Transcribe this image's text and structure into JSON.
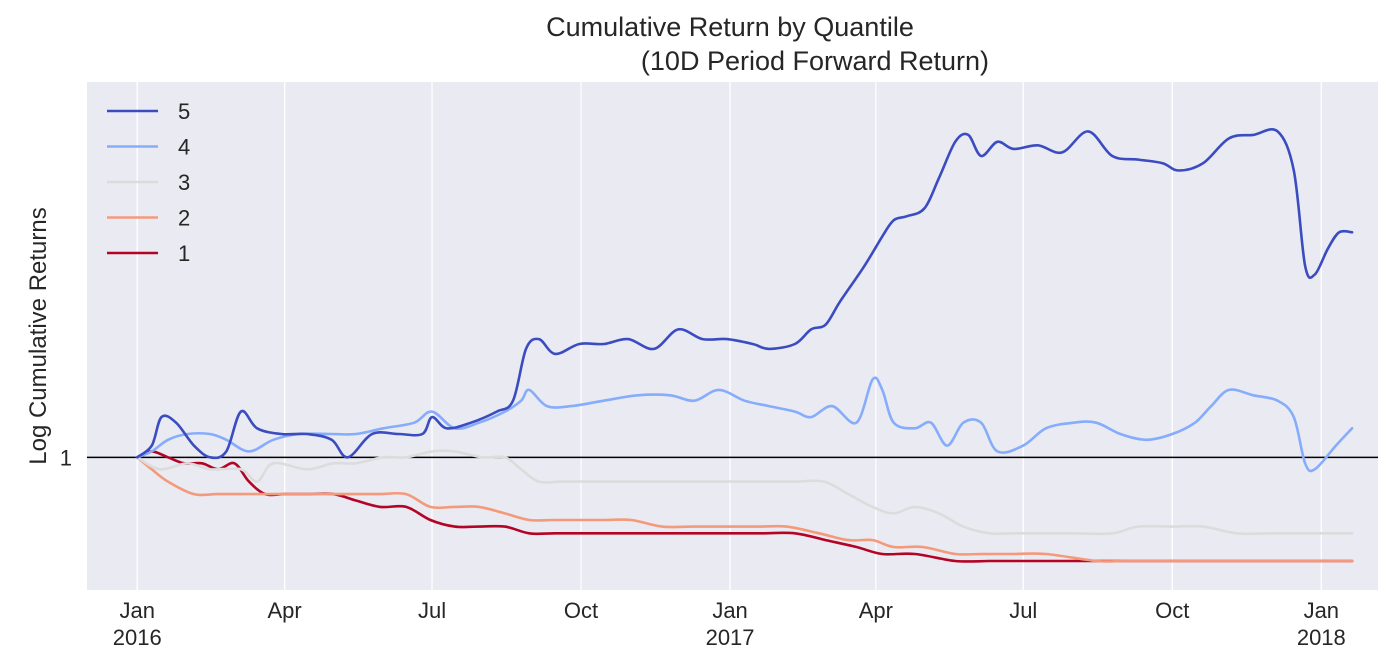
{
  "chart_data": {
    "type": "line",
    "title": "Cumulative Return by Quantile",
    "subtitle": "(10D Period Forward Return)",
    "xlabel": "",
    "ylabel": "Log Cumulative Returns",
    "y_scale": "log",
    "baseline": 1,
    "grid": true,
    "legend_position": "top-left",
    "x_ticks": [
      {
        "date": "2016-01-01",
        "label": "Jan",
        "sublabel": "2016"
      },
      {
        "date": "2016-04-01",
        "label": "Apr",
        "sublabel": ""
      },
      {
        "date": "2016-07-01",
        "label": "Jul",
        "sublabel": ""
      },
      {
        "date": "2016-10-01",
        "label": "Oct",
        "sublabel": ""
      },
      {
        "date": "2017-01-01",
        "label": "Jan",
        "sublabel": "2017"
      },
      {
        "date": "2017-04-01",
        "label": "Apr",
        "sublabel": ""
      },
      {
        "date": "2017-07-01",
        "label": "Jul",
        "sublabel": ""
      },
      {
        "date": "2017-10-01",
        "label": "Oct",
        "sublabel": ""
      },
      {
        "date": "2018-01-01",
        "label": "Jan",
        "sublabel": "2018"
      }
    ],
    "y_ticks": [
      {
        "value": 1,
        "label": "1"
      }
    ],
    "xlim": [
      "2015-12-01",
      "2018-02-05"
    ],
    "ylim": [
      0.8,
      1.88
    ],
    "series": [
      {
        "name": "5",
        "color": "#3b4cc0",
        "points": [
          [
            "2016-01-01",
            1.0
          ],
          [
            "2016-01-10",
            1.02
          ],
          [
            "2016-01-16",
            1.07
          ],
          [
            "2016-01-25",
            1.06
          ],
          [
            "2016-02-05",
            1.02
          ],
          [
            "2016-02-15",
            1.0
          ],
          [
            "2016-02-25",
            1.01
          ],
          [
            "2016-03-05",
            1.08
          ],
          [
            "2016-03-15",
            1.05
          ],
          [
            "2016-03-30",
            1.04
          ],
          [
            "2016-04-15",
            1.04
          ],
          [
            "2016-04-30",
            1.03
          ],
          [
            "2016-05-10",
            1.0
          ],
          [
            "2016-05-25",
            1.04
          ],
          [
            "2016-06-10",
            1.04
          ],
          [
            "2016-06-25",
            1.04
          ],
          [
            "2016-07-01",
            1.07
          ],
          [
            "2016-07-10",
            1.05
          ],
          [
            "2016-07-25",
            1.06
          ],
          [
            "2016-08-10",
            1.08
          ],
          [
            "2016-08-20",
            1.1
          ],
          [
            "2016-08-28",
            1.2
          ],
          [
            "2016-09-05",
            1.22
          ],
          [
            "2016-09-15",
            1.19
          ],
          [
            "2016-09-30",
            1.21
          ],
          [
            "2016-10-15",
            1.21
          ],
          [
            "2016-10-30",
            1.22
          ],
          [
            "2016-11-15",
            1.2
          ],
          [
            "2016-11-30",
            1.24
          ],
          [
            "2016-12-15",
            1.22
          ],
          [
            "2016-12-30",
            1.22
          ],
          [
            "2017-01-15",
            1.21
          ],
          [
            "2017-01-25",
            1.2
          ],
          [
            "2017-02-10",
            1.21
          ],
          [
            "2017-02-20",
            1.24
          ],
          [
            "2017-03-01",
            1.25
          ],
          [
            "2017-03-10",
            1.3
          ],
          [
            "2017-03-25",
            1.38
          ],
          [
            "2017-04-05",
            1.45
          ],
          [
            "2017-04-12",
            1.49
          ],
          [
            "2017-04-20",
            1.5
          ],
          [
            "2017-05-01",
            1.52
          ],
          [
            "2017-05-10",
            1.6
          ],
          [
            "2017-05-20",
            1.7
          ],
          [
            "2017-05-28",
            1.72
          ],
          [
            "2017-06-05",
            1.66
          ],
          [
            "2017-06-15",
            1.7
          ],
          [
            "2017-06-25",
            1.68
          ],
          [
            "2017-07-10",
            1.69
          ],
          [
            "2017-07-25",
            1.67
          ],
          [
            "2017-08-10",
            1.73
          ],
          [
            "2017-08-25",
            1.66
          ],
          [
            "2017-09-10",
            1.65
          ],
          [
            "2017-09-25",
            1.64
          ],
          [
            "2017-10-05",
            1.62
          ],
          [
            "2017-10-20",
            1.64
          ],
          [
            "2017-11-05",
            1.71
          ],
          [
            "2017-11-20",
            1.72
          ],
          [
            "2017-12-05",
            1.73
          ],
          [
            "2017-12-15",
            1.62
          ],
          [
            "2017-12-22",
            1.38
          ],
          [
            "2017-12-28",
            1.36
          ],
          [
            "2018-01-05",
            1.42
          ],
          [
            "2018-01-12",
            1.46
          ],
          [
            "2018-01-20",
            1.46
          ]
        ]
      },
      {
        "name": "4",
        "color": "#86acfc",
        "points": [
          [
            "2016-01-01",
            1.0
          ],
          [
            "2016-01-10",
            1.01
          ],
          [
            "2016-01-20",
            1.03
          ],
          [
            "2016-02-01",
            1.04
          ],
          [
            "2016-02-15",
            1.04
          ],
          [
            "2016-02-25",
            1.03
          ],
          [
            "2016-03-10",
            1.01
          ],
          [
            "2016-03-25",
            1.03
          ],
          [
            "2016-04-10",
            1.04
          ],
          [
            "2016-04-30",
            1.04
          ],
          [
            "2016-05-15",
            1.04
          ],
          [
            "2016-06-01",
            1.05
          ],
          [
            "2016-06-20",
            1.06
          ],
          [
            "2016-07-01",
            1.08
          ],
          [
            "2016-07-15",
            1.05
          ],
          [
            "2016-07-30",
            1.06
          ],
          [
            "2016-08-15",
            1.08
          ],
          [
            "2016-08-25",
            1.1
          ],
          [
            "2016-08-30",
            1.12
          ],
          [
            "2016-09-10",
            1.09
          ],
          [
            "2016-09-25",
            1.09
          ],
          [
            "2016-10-15",
            1.1
          ],
          [
            "2016-11-05",
            1.11
          ],
          [
            "2016-11-25",
            1.11
          ],
          [
            "2016-12-10",
            1.1
          ],
          [
            "2016-12-25",
            1.12
          ],
          [
            "2017-01-10",
            1.1
          ],
          [
            "2017-01-25",
            1.09
          ],
          [
            "2017-02-10",
            1.08
          ],
          [
            "2017-02-20",
            1.07
          ],
          [
            "2017-03-05",
            1.09
          ],
          [
            "2017-03-20",
            1.06
          ],
          [
            "2017-03-30",
            1.14
          ],
          [
            "2017-04-05",
            1.12
          ],
          [
            "2017-04-12",
            1.06
          ],
          [
            "2017-04-25",
            1.05
          ],
          [
            "2017-05-05",
            1.06
          ],
          [
            "2017-05-15",
            1.02
          ],
          [
            "2017-05-25",
            1.06
          ],
          [
            "2017-06-05",
            1.06
          ],
          [
            "2017-06-15",
            1.01
          ],
          [
            "2017-07-01",
            1.02
          ],
          [
            "2017-07-15",
            1.05
          ],
          [
            "2017-08-01",
            1.06
          ],
          [
            "2017-08-15",
            1.06
          ],
          [
            "2017-08-30",
            1.04
          ],
          [
            "2017-09-15",
            1.03
          ],
          [
            "2017-10-01",
            1.04
          ],
          [
            "2017-10-15",
            1.06
          ],
          [
            "2017-10-25",
            1.09
          ],
          [
            "2017-11-05",
            1.12
          ],
          [
            "2017-11-20",
            1.11
          ],
          [
            "2017-12-05",
            1.1
          ],
          [
            "2017-12-15",
            1.07
          ],
          [
            "2017-12-22",
            0.99
          ],
          [
            "2017-12-28",
            0.98
          ],
          [
            "2018-01-10",
            1.02
          ],
          [
            "2018-01-20",
            1.05
          ]
        ]
      },
      {
        "name": "3",
        "color": "#dddcdc",
        "points": [
          [
            "2016-01-01",
            1.0
          ],
          [
            "2016-01-15",
            0.98
          ],
          [
            "2016-02-01",
            0.99
          ],
          [
            "2016-02-15",
            0.98
          ],
          [
            "2016-03-05",
            0.98
          ],
          [
            "2016-03-15",
            0.96
          ],
          [
            "2016-03-25",
            0.99
          ],
          [
            "2016-04-15",
            0.98
          ],
          [
            "2016-05-01",
            0.99
          ],
          [
            "2016-05-15",
            0.99
          ],
          [
            "2016-06-01",
            1.0
          ],
          [
            "2016-06-15",
            1.0
          ],
          [
            "2016-07-01",
            1.01
          ],
          [
            "2016-07-15",
            1.01
          ],
          [
            "2016-08-01",
            1.0
          ],
          [
            "2016-08-15",
            1.0
          ],
          [
            "2016-08-25",
            0.98
          ],
          [
            "2016-09-05",
            0.96
          ],
          [
            "2016-09-20",
            0.96
          ],
          [
            "2016-10-15",
            0.96
          ],
          [
            "2016-11-01",
            0.96
          ],
          [
            "2016-11-20",
            0.96
          ],
          [
            "2016-12-15",
            0.96
          ],
          [
            "2017-01-10",
            0.96
          ],
          [
            "2017-01-25",
            0.96
          ],
          [
            "2017-02-10",
            0.96
          ],
          [
            "2017-02-28",
            0.96
          ],
          [
            "2017-03-15",
            0.94
          ],
          [
            "2017-03-30",
            0.92
          ],
          [
            "2017-04-12",
            0.91
          ],
          [
            "2017-04-25",
            0.92
          ],
          [
            "2017-05-10",
            0.91
          ],
          [
            "2017-05-25",
            0.89
          ],
          [
            "2017-06-10",
            0.88
          ],
          [
            "2017-06-25",
            0.88
          ],
          [
            "2017-07-10",
            0.88
          ],
          [
            "2017-08-01",
            0.88
          ],
          [
            "2017-08-25",
            0.88
          ],
          [
            "2017-09-10",
            0.89
          ],
          [
            "2017-10-01",
            0.89
          ],
          [
            "2017-10-20",
            0.89
          ],
          [
            "2017-11-10",
            0.88
          ],
          [
            "2017-12-01",
            0.88
          ],
          [
            "2017-12-20",
            0.88
          ],
          [
            "2018-01-10",
            0.88
          ],
          [
            "2018-01-20",
            0.88
          ]
        ]
      },
      {
        "name": "2",
        "color": "#f49a7b",
        "points": [
          [
            "2016-01-01",
            1.0
          ],
          [
            "2016-01-10",
            0.98
          ],
          [
            "2016-01-20",
            0.96
          ],
          [
            "2016-02-05",
            0.94
          ],
          [
            "2016-02-20",
            0.94
          ],
          [
            "2016-03-10",
            0.94
          ],
          [
            "2016-03-25",
            0.94
          ],
          [
            "2016-04-10",
            0.94
          ],
          [
            "2016-04-25",
            0.94
          ],
          [
            "2016-05-15",
            0.94
          ],
          [
            "2016-05-30",
            0.94
          ],
          [
            "2016-06-15",
            0.94
          ],
          [
            "2016-06-30",
            0.92
          ],
          [
            "2016-07-15",
            0.92
          ],
          [
            "2016-07-30",
            0.92
          ],
          [
            "2016-08-15",
            0.91
          ],
          [
            "2016-08-30",
            0.9
          ],
          [
            "2016-09-15",
            0.9
          ],
          [
            "2016-10-15",
            0.9
          ],
          [
            "2016-11-01",
            0.9
          ],
          [
            "2016-11-20",
            0.89
          ],
          [
            "2016-12-10",
            0.89
          ],
          [
            "2016-12-30",
            0.89
          ],
          [
            "2017-01-20",
            0.89
          ],
          [
            "2017-02-05",
            0.89
          ],
          [
            "2017-02-25",
            0.88
          ],
          [
            "2017-03-15",
            0.87
          ],
          [
            "2017-03-30",
            0.87
          ],
          [
            "2017-04-12",
            0.86
          ],
          [
            "2017-04-30",
            0.86
          ],
          [
            "2017-05-20",
            0.85
          ],
          [
            "2017-06-05",
            0.85
          ],
          [
            "2017-06-25",
            0.85
          ],
          [
            "2017-07-15",
            0.85
          ],
          [
            "2017-08-15",
            0.84
          ],
          [
            "2017-09-01",
            0.84
          ],
          [
            "2017-09-25",
            0.84
          ],
          [
            "2017-10-15",
            0.84
          ],
          [
            "2017-11-01",
            0.84
          ],
          [
            "2017-11-20",
            0.84
          ],
          [
            "2017-12-15",
            0.84
          ],
          [
            "2018-01-05",
            0.84
          ],
          [
            "2018-01-20",
            0.84
          ]
        ]
      },
      {
        "name": "1",
        "color": "#b40426",
        "points": [
          [
            "2016-01-01",
            1.0
          ],
          [
            "2016-01-10",
            1.01
          ],
          [
            "2016-01-20",
            1.0
          ],
          [
            "2016-01-30",
            0.99
          ],
          [
            "2016-02-10",
            0.99
          ],
          [
            "2016-02-20",
            0.98
          ],
          [
            "2016-03-01",
            0.99
          ],
          [
            "2016-03-10",
            0.96
          ],
          [
            "2016-03-20",
            0.94
          ],
          [
            "2016-04-01",
            0.94
          ],
          [
            "2016-04-15",
            0.94
          ],
          [
            "2016-05-01",
            0.94
          ],
          [
            "2016-05-15",
            0.93
          ],
          [
            "2016-05-30",
            0.92
          ],
          [
            "2016-06-15",
            0.92
          ],
          [
            "2016-06-30",
            0.9
          ],
          [
            "2016-07-15",
            0.89
          ],
          [
            "2016-07-30",
            0.89
          ],
          [
            "2016-08-15",
            0.89
          ],
          [
            "2016-08-30",
            0.88
          ],
          [
            "2016-09-15",
            0.88
          ],
          [
            "2016-10-05",
            0.88
          ],
          [
            "2016-10-25",
            0.88
          ],
          [
            "2016-11-15",
            0.88
          ],
          [
            "2016-12-10",
            0.88
          ],
          [
            "2016-12-30",
            0.88
          ],
          [
            "2017-01-20",
            0.88
          ],
          [
            "2017-02-10",
            0.88
          ],
          [
            "2017-03-01",
            0.87
          ],
          [
            "2017-03-20",
            0.86
          ],
          [
            "2017-04-05",
            0.85
          ],
          [
            "2017-04-25",
            0.85
          ],
          [
            "2017-05-20",
            0.84
          ],
          [
            "2017-06-10",
            0.84
          ],
          [
            "2017-07-01",
            0.84
          ],
          [
            "2017-08-01",
            0.84
          ],
          [
            "2017-09-01",
            0.84
          ],
          [
            "2017-10-01",
            0.84
          ],
          [
            "2017-11-01",
            0.84
          ],
          [
            "2017-12-01",
            0.84
          ],
          [
            "2018-01-01",
            0.84
          ],
          [
            "2018-01-20",
            0.84
          ]
        ]
      }
    ]
  }
}
